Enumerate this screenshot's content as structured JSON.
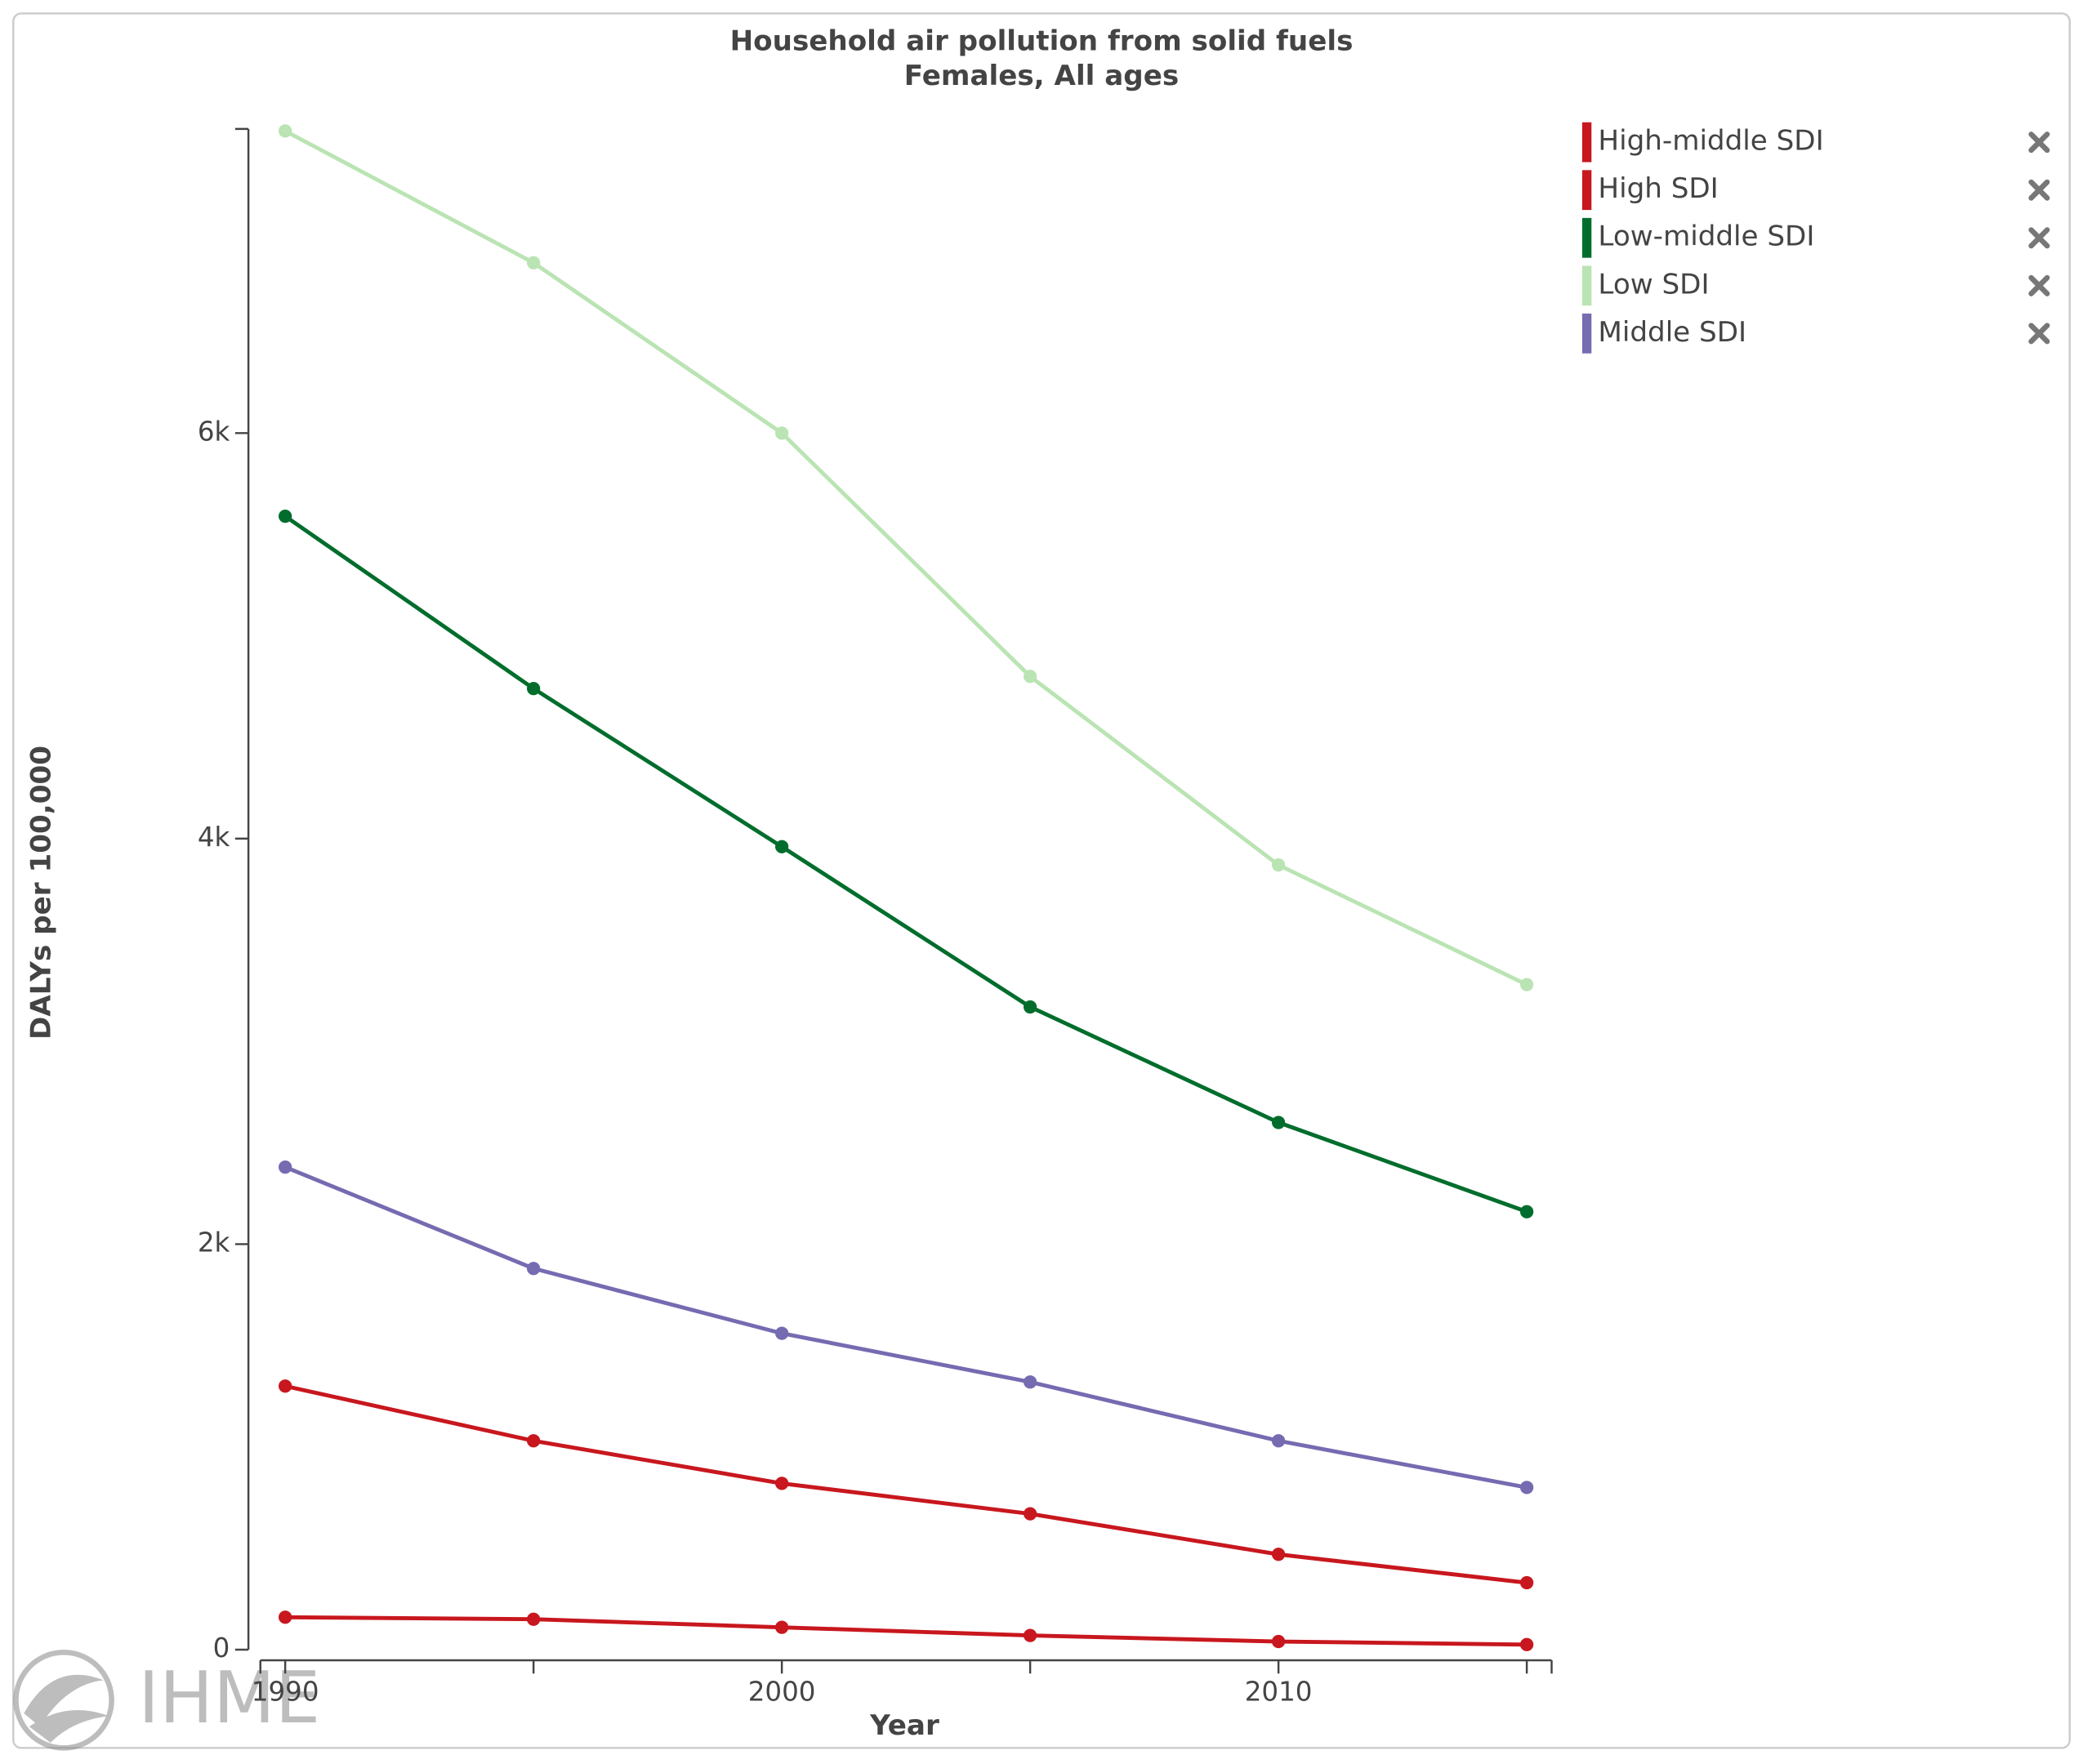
{
  "chart_data": {
    "type": "line",
    "title": "Household air pollution from solid fuels",
    "subtitle": "Females, All ages",
    "x_label": "Year",
    "y_label": "DALYs per 100,000",
    "x": [
      1990,
      1995,
      2000,
      2005,
      2010,
      2015
    ],
    "series": [
      {
        "name": "High-middle SDI",
        "color": "#c8171e",
        "values": [
          1300,
          1030,
          820,
          670,
          470,
          330
        ]
      },
      {
        "name": "High SDI",
        "color": "#c8171e",
        "values": [
          160,
          150,
          110,
          70,
          40,
          25
        ]
      },
      {
        "name": "Low-middle SDI",
        "color": "#006d2c",
        "values": [
          5590,
          4740,
          3960,
          3170,
          2600,
          2160
        ]
      },
      {
        "name": "Low SDI",
        "color": "#bae4b3",
        "values": [
          7490,
          6840,
          6000,
          4800,
          3870,
          3280
        ]
      },
      {
        "name": "Middle SDI",
        "color": "#756bb1",
        "values": [
          2380,
          1880,
          1560,
          1320,
          1030,
          800
        ]
      }
    ],
    "xlim": [
      1989.5,
      2015.5
    ],
    "xticks": [
      1990,
      2000,
      2010
    ],
    "xminor_ticks": [
      1995,
      2005,
      2015
    ],
    "ylim": [
      0,
      7500
    ],
    "yticks": [
      0,
      {
        "value": 2000,
        "label": "2k"
      },
      {
        "value": 4000,
        "label": "4k"
      },
      {
        "value": 6000,
        "label": "6k"
      }
    ],
    "legend": "top-right"
  },
  "logo": "IHME"
}
